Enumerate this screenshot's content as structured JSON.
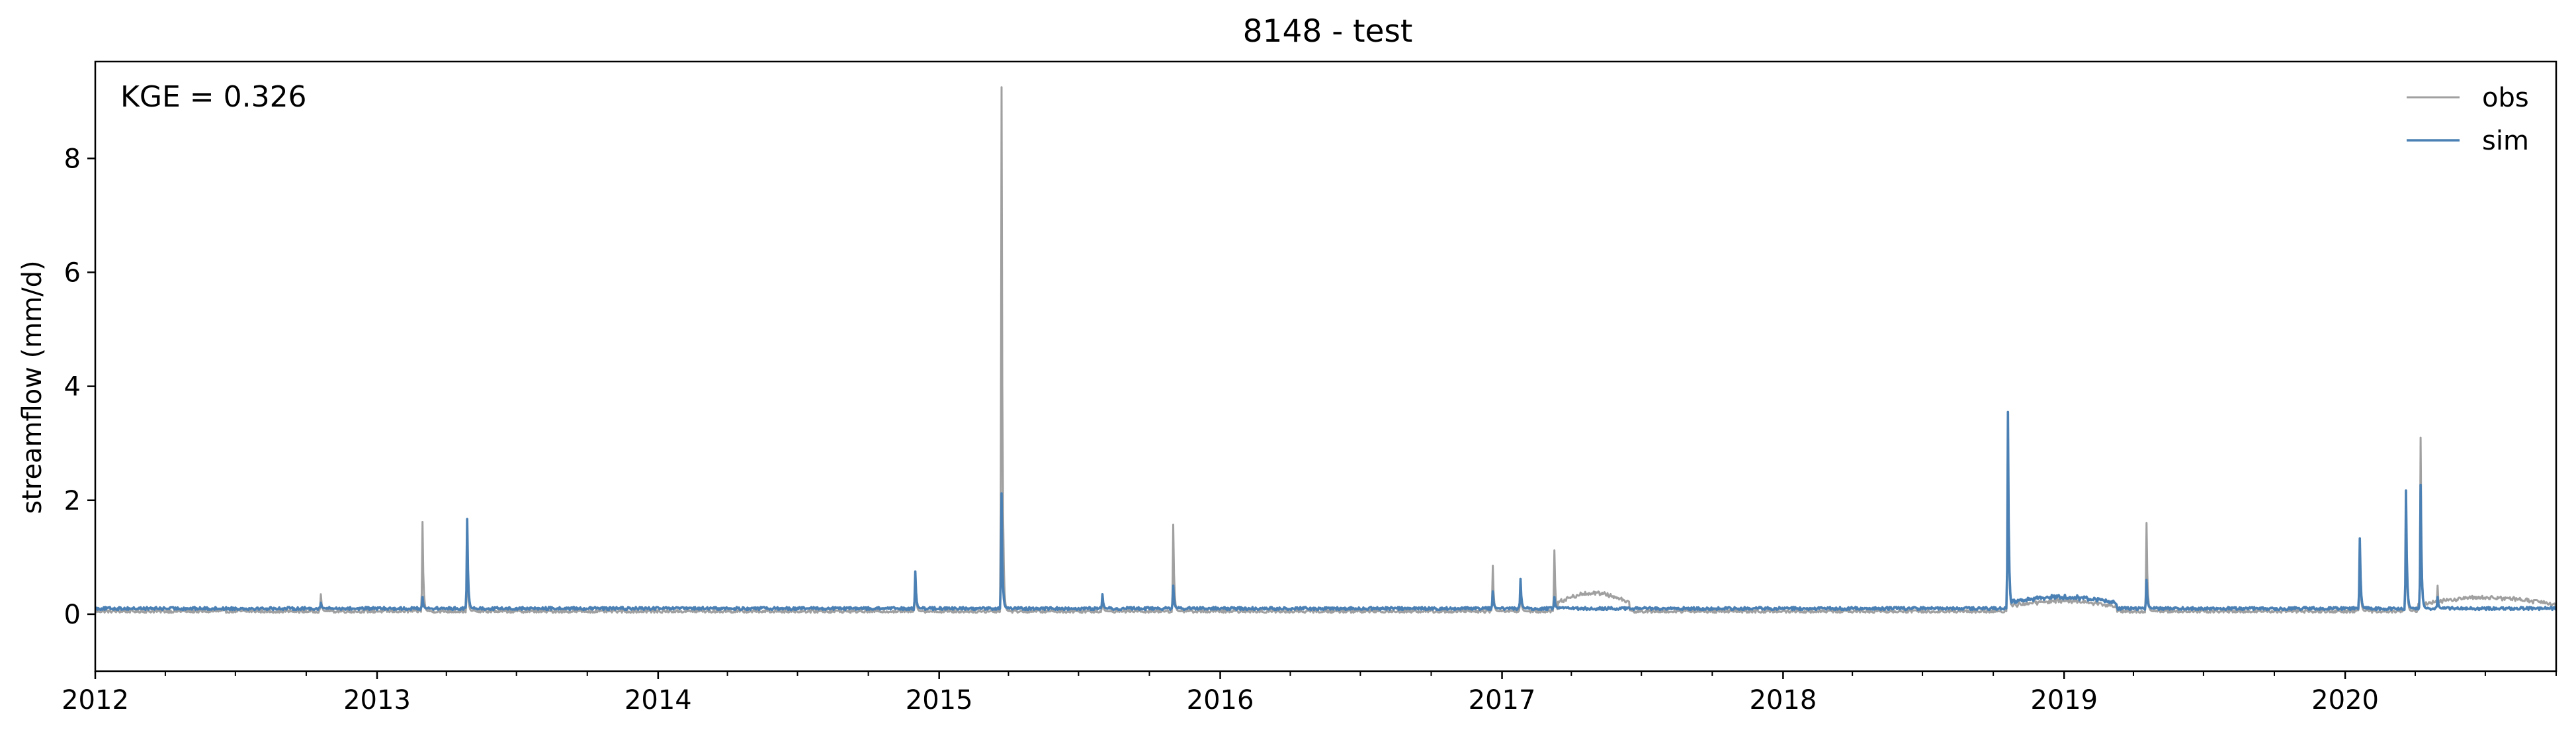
{
  "chart_data": {
    "type": "line",
    "title": "8148 - test",
    "xlabel": "",
    "ylabel": "streamflow (mm/d)",
    "annotation": "KGE = 0.326",
    "x_range": [
      "2012-01-01",
      "2020-10-01"
    ],
    "ylim": [
      -1.0,
      9.7
    ],
    "y_ticks": [
      0,
      2,
      4,
      6,
      8
    ],
    "x_ticks": [
      "2012",
      "2013",
      "2014",
      "2015",
      "2016",
      "2017",
      "2018",
      "2019",
      "2020"
    ],
    "grid": false,
    "legend_position": "top-right",
    "series": [
      {
        "name": "obs",
        "color": "#a0a0a0",
        "baseline": 0.05,
        "slow_bumps": [
          {
            "from": "2017-03-15",
            "to": "2017-06-15",
            "level": 0.32
          },
          {
            "from": "2018-10-20",
            "to": "2019-03-10",
            "level": 0.18
          },
          {
            "from": "2020-04-05",
            "to": "2020-10-01",
            "level": 0.24
          }
        ],
        "peaks": [
          {
            "date": "2012-10-20",
            "value": 0.35
          },
          {
            "date": "2013-03-01",
            "value": 1.62
          },
          {
            "date": "2013-04-28",
            "value": 1.0
          },
          {
            "date": "2014-12-01",
            "value": 0.7
          },
          {
            "date": "2015-03-23",
            "value": 9.25
          },
          {
            "date": "2015-08-01",
            "value": 0.3
          },
          {
            "date": "2015-11-01",
            "value": 1.57
          },
          {
            "date": "2016-12-20",
            "value": 0.85
          },
          {
            "date": "2017-01-25",
            "value": 0.5
          },
          {
            "date": "2017-03-10",
            "value": 1.12
          },
          {
            "date": "2018-10-20",
            "value": 3.5
          },
          {
            "date": "2019-04-18",
            "value": 1.6
          },
          {
            "date": "2020-01-20",
            "value": 1.1
          },
          {
            "date": "2020-03-20",
            "value": 1.8
          },
          {
            "date": "2020-04-08",
            "value": 3.1
          },
          {
            "date": "2020-04-30",
            "value": 0.5
          }
        ]
      },
      {
        "name": "sim",
        "color": "#4a80b4",
        "baseline": 0.1,
        "slow_bumps": [
          {
            "from": "2018-10-20",
            "to": "2019-03-10",
            "level": 0.2
          }
        ],
        "peaks": [
          {
            "date": "2012-10-20",
            "value": 0.2
          },
          {
            "date": "2013-03-01",
            "value": 0.3
          },
          {
            "date": "2013-04-28",
            "value": 1.67
          },
          {
            "date": "2014-12-01",
            "value": 0.75
          },
          {
            "date": "2015-03-23",
            "value": 2.12
          },
          {
            "date": "2015-08-01",
            "value": 0.35
          },
          {
            "date": "2015-11-01",
            "value": 0.5
          },
          {
            "date": "2016-12-20",
            "value": 0.4
          },
          {
            "date": "2017-01-25",
            "value": 0.62
          },
          {
            "date": "2017-03-10",
            "value": 0.3
          },
          {
            "date": "2018-10-20",
            "value": 3.55
          },
          {
            "date": "2019-04-18",
            "value": 0.6
          },
          {
            "date": "2020-01-20",
            "value": 1.33
          },
          {
            "date": "2020-03-20",
            "value": 2.17
          },
          {
            "date": "2020-04-08",
            "value": 2.27
          },
          {
            "date": "2020-04-30",
            "value": 0.3
          }
        ]
      }
    ]
  }
}
